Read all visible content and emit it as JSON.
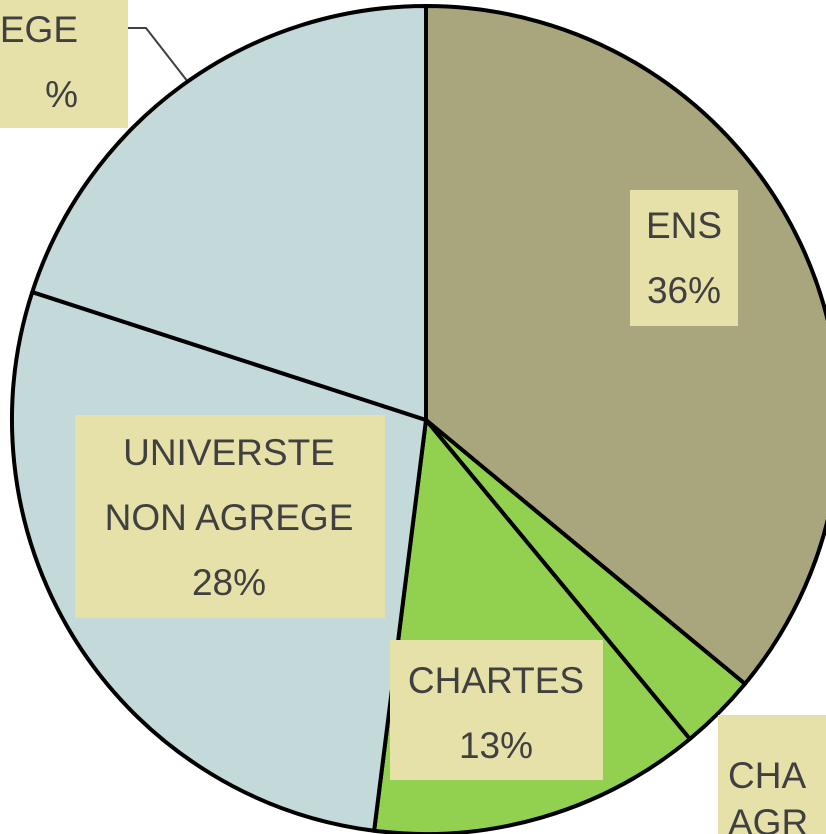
{
  "chart_data": {
    "type": "pie",
    "labels": [
      [
        "ENS",
        "36%"
      ],
      [
        "CHA",
        "AGR"
      ],
      [
        "CHARTES",
        "13%"
      ],
      [
        "UNIVERSTE",
        "NON AGREGE",
        "28%"
      ],
      [
        "EGE",
        "%"
      ]
    ],
    "values": [
      36,
      3,
      13,
      28,
      20
    ],
    "colors": [
      "#a9a57c",
      "#92d050",
      "#92d050",
      "#c4d9da",
      "#c4d9da"
    ]
  }
}
